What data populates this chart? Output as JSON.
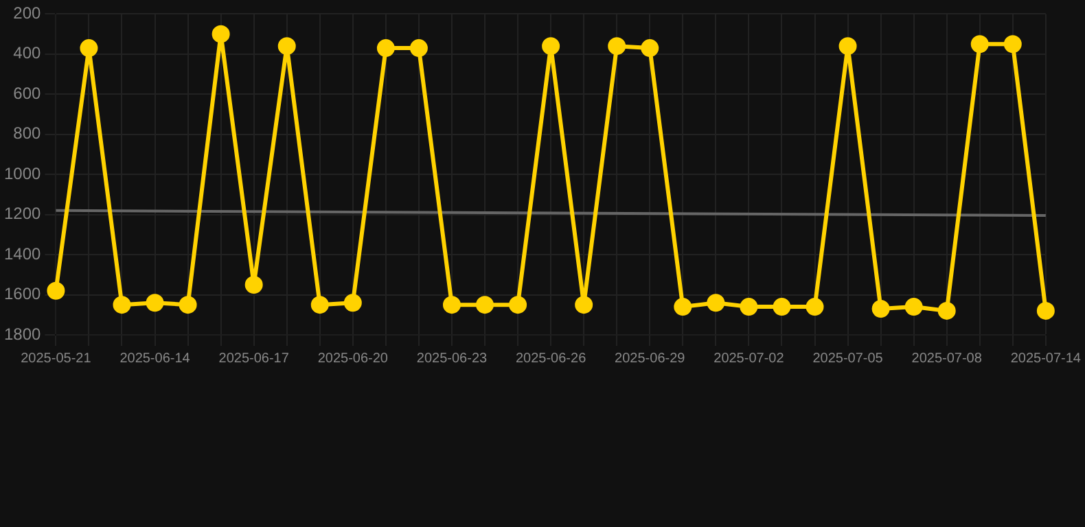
{
  "chart_data": {
    "type": "line",
    "categories": [
      "2025-05-21",
      null,
      null,
      "2025-06-14",
      null,
      null,
      "2025-06-17",
      null,
      null,
      "2025-06-20",
      null,
      null,
      "2025-06-23",
      null,
      null,
      "2025-06-26",
      null,
      null,
      "2025-06-29",
      null,
      null,
      "2025-07-02",
      null,
      null,
      "2025-07-05",
      null,
      null,
      "2025-07-08",
      null,
      null,
      "2025-07-14"
    ],
    "series": [
      {
        "color": "#ffd200",
        "marker": "circle",
        "values": [
          1580,
          370,
          1650,
          1640,
          1650,
          300,
          1550,
          360,
          1650,
          1640,
          370,
          370,
          1650,
          1650,
          1650,
          360,
          1650,
          360,
          370,
          1660,
          1640,
          1660,
          1660,
          1660,
          360,
          1670,
          1660,
          1680,
          350,
          350,
          1680
        ]
      },
      {
        "type": "line",
        "color": "#666666",
        "marker": "none",
        "values": [
          1180,
          null,
          null,
          null,
          null,
          null,
          null,
          null,
          null,
          null,
          null,
          null,
          null,
          null,
          null,
          null,
          null,
          null,
          null,
          null,
          null,
          null,
          null,
          null,
          null,
          null,
          null,
          null,
          null,
          null,
          1205
        ]
      }
    ],
    "ylim": [
      1800,
      200
    ],
    "yticks": [
      200,
      400,
      600,
      800,
      1000,
      1200,
      1400,
      1600,
      1800
    ],
    "grid": true
  }
}
